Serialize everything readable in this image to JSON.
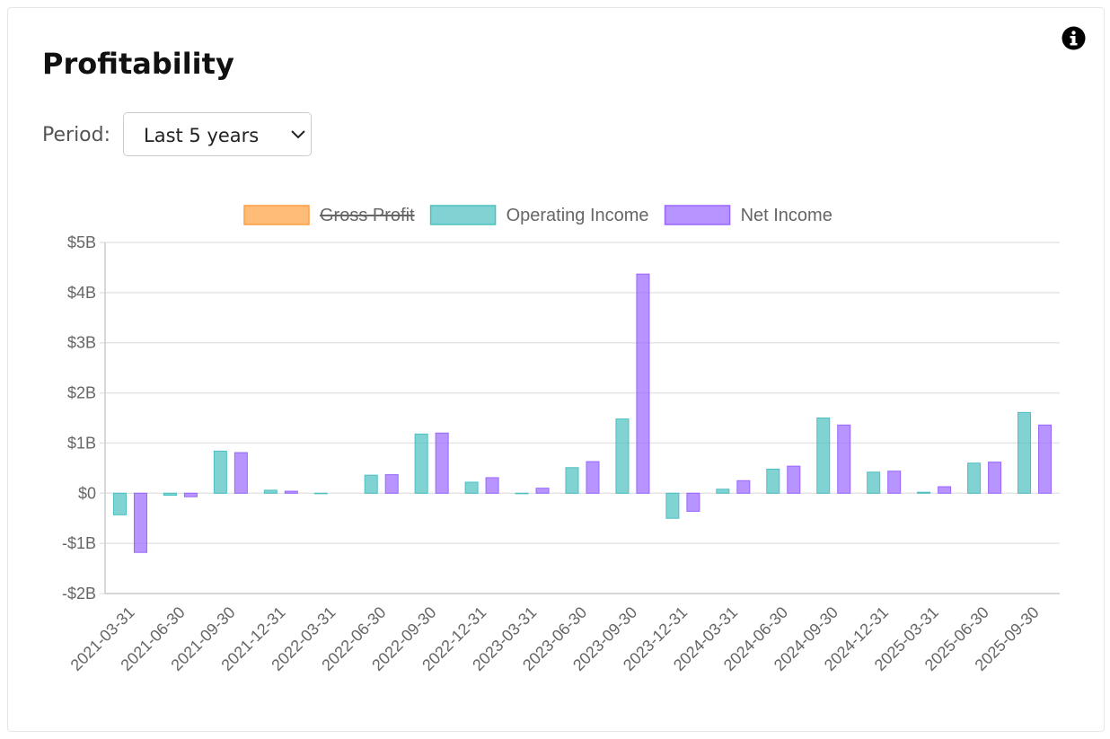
{
  "header": {
    "title": "Profitability",
    "period_label": "Period:",
    "period_value": "Last 5 years"
  },
  "chart_data": {
    "type": "bar",
    "categories": [
      "2021-03-31",
      "2021-06-30",
      "2021-09-30",
      "2021-12-31",
      "2022-03-31",
      "2022-06-30",
      "2022-09-30",
      "2022-12-31",
      "2023-03-31",
      "2023-06-30",
      "2023-09-30",
      "2023-12-31",
      "2024-03-31",
      "2024-06-30",
      "2024-09-30",
      "2024-12-31",
      "2025-03-31",
      "2025-06-30",
      "2025-09-30"
    ],
    "series": [
      {
        "name": "Gross Profit",
        "color": "#ff9f40",
        "hidden": true,
        "values": [
          null,
          null,
          null,
          null,
          null,
          null,
          null,
          null,
          null,
          null,
          null,
          null,
          null,
          null,
          null,
          null,
          null,
          null,
          null
        ]
      },
      {
        "name": "Operating Income",
        "color": "#4bc0c0",
        "values": [
          -0.43,
          -0.04,
          0.84,
          0.06,
          -0.01,
          0.36,
          1.18,
          0.22,
          -0.01,
          0.51,
          1.48,
          -0.5,
          0.08,
          0.48,
          1.5,
          0.42,
          0.02,
          0.6,
          1.61
        ]
      },
      {
        "name": "Net Income",
        "color": "#9966ff",
        "values": [
          -1.18,
          -0.07,
          0.81,
          0.04,
          0,
          0.37,
          1.2,
          0.31,
          0.1,
          0.63,
          4.37,
          -0.36,
          0.25,
          0.54,
          1.36,
          0.44,
          0.13,
          0.62,
          1.36
        ]
      }
    ],
    "ylim": [
      -2,
      5
    ],
    "yticks": [
      {
        "value": -2,
        "label": "-$2B"
      },
      {
        "value": -1,
        "label": "-$1B"
      },
      {
        "value": 0,
        "label": "$0"
      },
      {
        "value": 1,
        "label": "$1B"
      },
      {
        "value": 2,
        "label": "$2B"
      },
      {
        "value": 3,
        "label": "$3B"
      },
      {
        "value": 4,
        "label": "$4B"
      },
      {
        "value": 5,
        "label": "$5B"
      }
    ],
    "grid": true,
    "legend": "top"
  }
}
